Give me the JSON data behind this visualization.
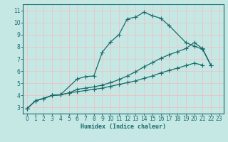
{
  "xlabel": "Humidex (Indice chaleur)",
  "xlim": [
    -0.5,
    23.5
  ],
  "ylim": [
    2.5,
    11.5
  ],
  "xticks": [
    0,
    1,
    2,
    3,
    4,
    5,
    6,
    7,
    8,
    9,
    10,
    11,
    12,
    13,
    14,
    15,
    16,
    17,
    18,
    19,
    20,
    21,
    22,
    23
  ],
  "yticks": [
    3,
    4,
    5,
    6,
    7,
    8,
    9,
    10,
    11
  ],
  "bg_color": "#c5e8e5",
  "grid_color": "#e8c8c8",
  "line_color": "#1a6b6b",
  "line1_x": [
    0,
    1,
    2,
    3,
    4,
    6,
    7,
    8,
    9,
    10,
    11,
    12,
    13,
    14,
    15,
    16,
    17,
    19,
    20,
    21,
    22
  ],
  "line1_y": [
    2.9,
    3.55,
    3.75,
    4.0,
    4.05,
    5.35,
    5.55,
    5.6,
    7.55,
    8.4,
    9.0,
    10.3,
    10.45,
    10.85,
    10.55,
    10.35,
    9.75,
    8.35,
    8.05,
    7.8,
    6.45
  ],
  "line2_x": [
    0,
    1,
    2,
    3,
    4,
    5,
    6,
    7,
    8,
    9,
    10,
    11,
    12,
    13,
    14,
    15,
    16,
    17,
    18,
    19,
    20,
    21
  ],
  "line2_y": [
    2.9,
    3.55,
    3.75,
    4.0,
    4.05,
    4.2,
    4.3,
    4.4,
    4.5,
    4.6,
    4.75,
    4.9,
    5.05,
    5.2,
    5.4,
    5.6,
    5.85,
    6.05,
    6.25,
    6.45,
    6.65,
    6.5
  ],
  "line3_x": [
    0,
    1,
    2,
    3,
    4,
    5,
    6,
    7,
    8,
    9,
    10,
    11,
    12,
    13,
    14,
    15,
    16,
    17,
    18,
    19,
    20,
    21,
    22
  ],
  "line3_y": [
    2.9,
    3.55,
    3.75,
    4.0,
    4.05,
    4.2,
    4.5,
    4.6,
    4.7,
    4.85,
    5.05,
    5.3,
    5.6,
    5.95,
    6.35,
    6.7,
    7.05,
    7.35,
    7.6,
    7.85,
    8.35,
    7.85,
    6.5
  ]
}
